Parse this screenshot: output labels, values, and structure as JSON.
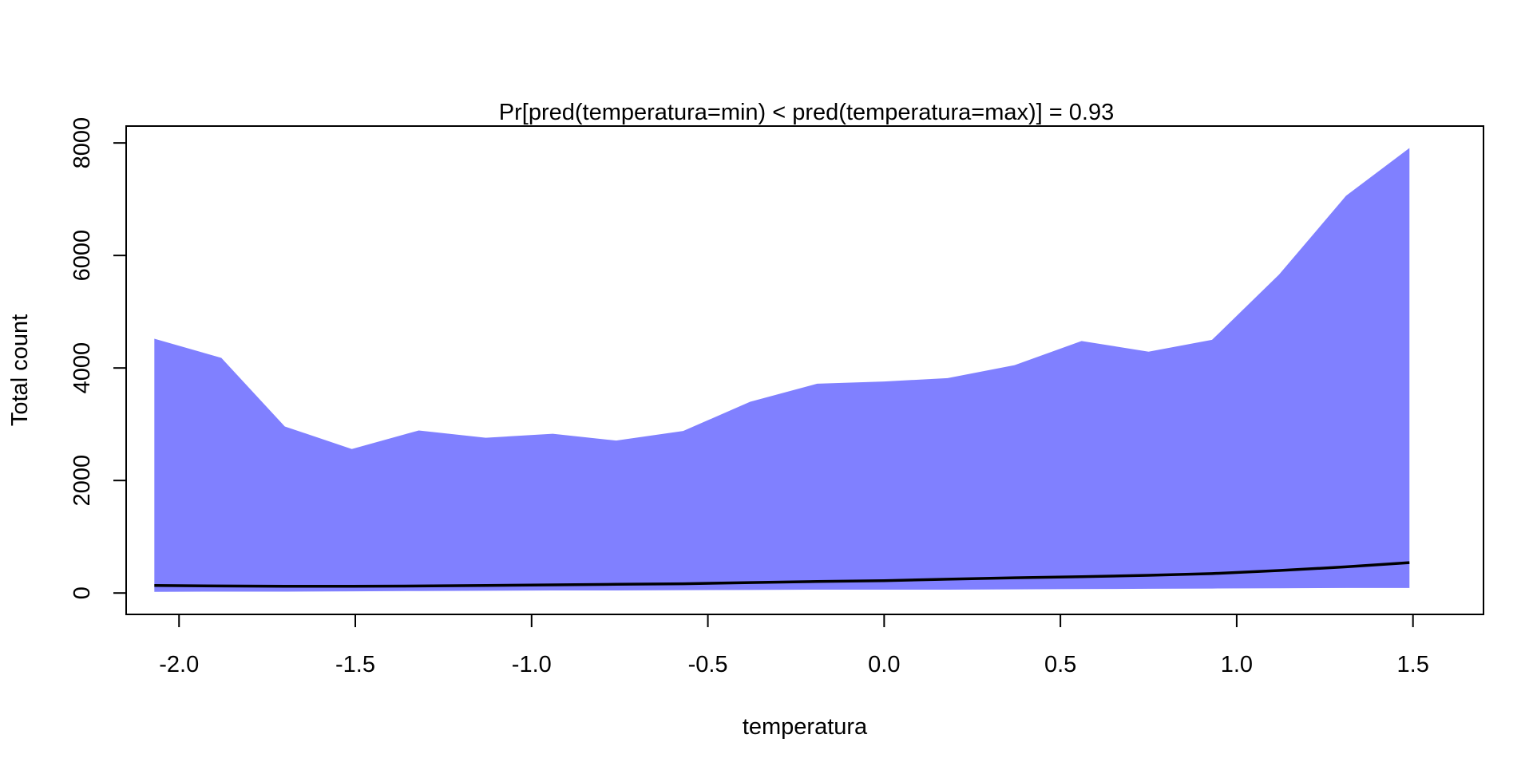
{
  "chart_data": {
    "type": "area",
    "title": "Pr[pred(temperatura=min) < pred(temperatura=max)] = 0.93",
    "xlabel": "temperatura",
    "ylabel": "Total count",
    "xlim": [
      -2.15,
      1.7
    ],
    "ylim": [
      -380,
      8300
    ],
    "x_ticks": [
      -2.0,
      -1.5,
      -1.0,
      -0.5,
      0.0,
      0.5,
      1.0,
      1.5
    ],
    "x_tick_labels": [
      "-2.0",
      "-1.5",
      "-1.0",
      "-0.5",
      "0.0",
      "0.5",
      "1.0",
      "1.5"
    ],
    "y_ticks": [
      0,
      2000,
      4000,
      6000,
      8000
    ],
    "y_tick_labels": [
      "0",
      "2000",
      "4000",
      "6000",
      "8000"
    ],
    "grid": false,
    "legend": "none",
    "x": [
      -2.07,
      -1.88,
      -1.7,
      -1.51,
      -1.32,
      -1.13,
      -0.94,
      -0.76,
      -0.57,
      -0.38,
      -0.19,
      0.0,
      0.18,
      0.37,
      0.56,
      0.75,
      0.93,
      1.12,
      1.31,
      1.49
    ],
    "series": [
      {
        "kind": "upper-band",
        "values": [
          4520,
          4180,
          2960,
          2560,
          2890,
          2760,
          2830,
          2710,
          2880,
          3400,
          3720,
          3760,
          3820,
          4050,
          4480,
          4290,
          4500,
          5660,
          7060,
          7910
        ]
      },
      {
        "kind": "lower-band",
        "values": [
          20,
          25,
          25,
          30,
          35,
          40,
          45,
          45,
          50,
          55,
          60,
          60,
          60,
          65,
          70,
          75,
          80,
          85,
          90,
          90
        ]
      },
      {
        "kind": "median-line",
        "values": [
          135,
          125,
          120,
          120,
          125,
          135,
          145,
          155,
          165,
          185,
          205,
          220,
          245,
          270,
          290,
          315,
          345,
          400,
          465,
          540
        ]
      }
    ],
    "colors": {
      "band": "#8080ff",
      "line": "#000000",
      "axis": "#000000"
    }
  }
}
